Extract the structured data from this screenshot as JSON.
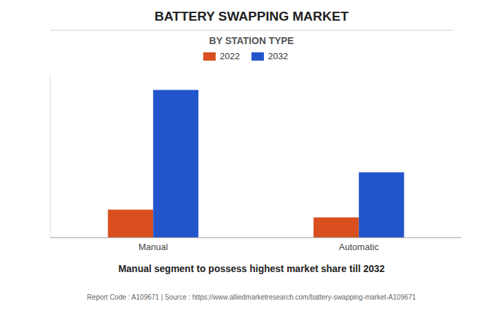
{
  "chart_data": {
    "type": "bar",
    "title": "BATTERY SWAPPING MARKET",
    "subtitle": "BY STATION TYPE",
    "categories": [
      "Manual",
      "Automatic"
    ],
    "series": [
      {
        "name": "2022",
        "color": "#d94f1e",
        "values": [
          0.18,
          0.13
        ]
      },
      {
        "name": "2032",
        "color": "#2255cc",
        "values": [
          0.95,
          0.42
        ]
      }
    ],
    "ylim": [
      0,
      1.05
    ],
    "yticks": [],
    "grid": false,
    "legend": "top",
    "tick_labels": "x",
    "annotations": [
      "Manual segment to possess highest market share till 2032",
      "Report Code : A109671  |  Source : https://www.alliedmarketresearch.com/battery-swapping-market-A109671"
    ]
  }
}
